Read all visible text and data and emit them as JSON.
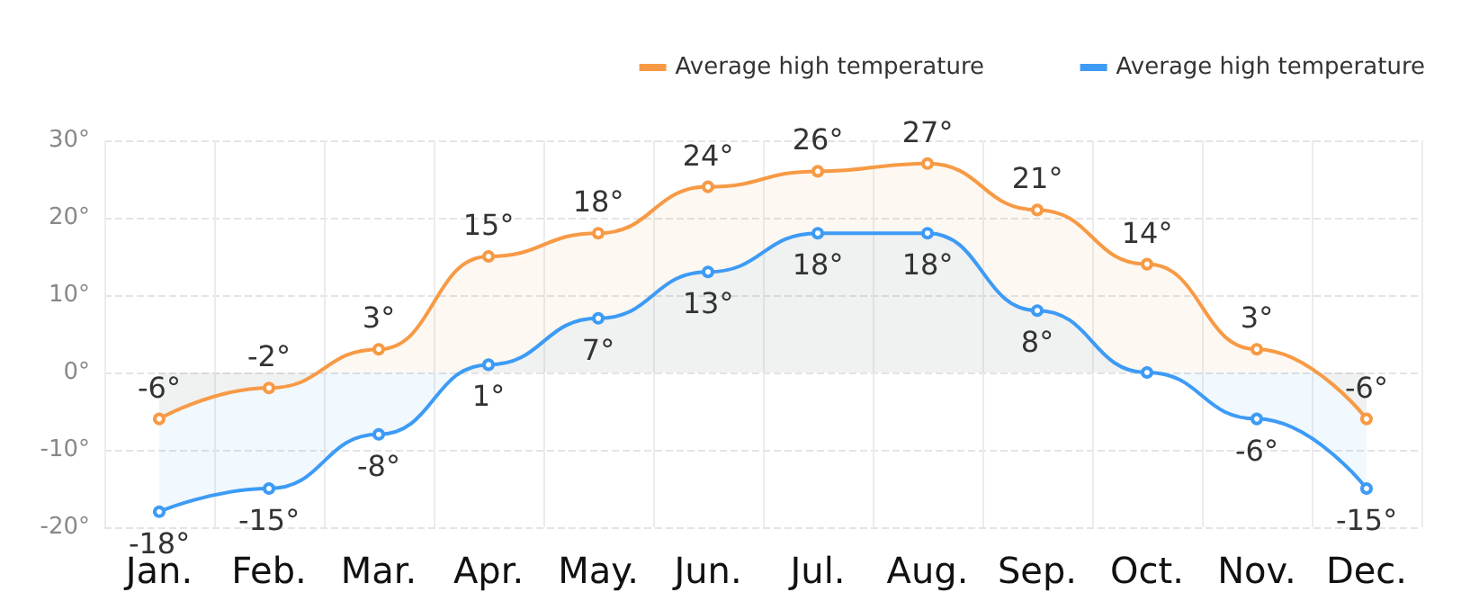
{
  "chart_data": {
    "type": "area",
    "categories": [
      "Jan.",
      "Feb.",
      "Mar.",
      "Apr.",
      "May.",
      "Jun.",
      "Jul.",
      "Aug.",
      "Sep.",
      "Oct.",
      "Nov.",
      "Dec."
    ],
    "series": [
      {
        "name": "Average high temperature",
        "color": "#f79a45",
        "values": [
          -6,
          -2,
          3,
          15,
          18,
          24,
          26,
          27,
          21,
          14,
          3,
          -6
        ],
        "value_labels": [
          "-6°",
          "-2°",
          "3°",
          "15°",
          "18°",
          "24°",
          "26°",
          "27°",
          "21°",
          "14°",
          "3°",
          "-6°"
        ]
      },
      {
        "name": "Average high temperature",
        "color": "#3d9bf5",
        "values": [
          -18,
          -15,
          -8,
          1,
          7,
          13,
          18,
          18,
          8,
          0,
          -6,
          -15
        ],
        "value_labels": [
          "-18°",
          "-15°",
          "-8°",
          "1°",
          "7°",
          "13°",
          "18°",
          "18°",
          "8°",
          null,
          "-6°",
          "-15°"
        ]
      }
    ],
    "ylim": [
      -20,
      30
    ],
    "yticks": [
      {
        "value": -20,
        "label": "-20°"
      },
      {
        "value": -10,
        "label": "-10°"
      },
      {
        "value": 0,
        "label": "0°"
      },
      {
        "value": 10,
        "label": "10°"
      },
      {
        "value": 20,
        "label": "20°"
      },
      {
        "value": 30,
        "label": "30°"
      }
    ],
    "grid": true,
    "legend": "top right",
    "marker": "circle",
    "line_style": "solid"
  }
}
